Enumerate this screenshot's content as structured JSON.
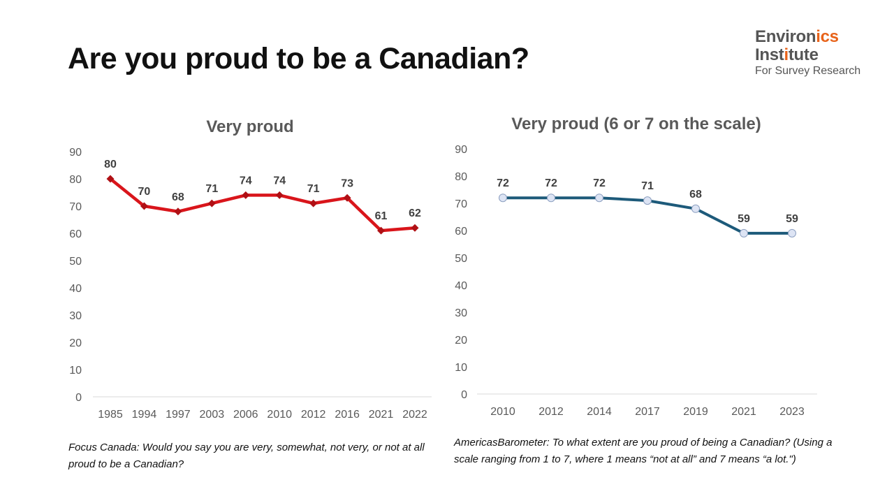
{
  "page": {
    "title": "Are you proud to be a Canadian?"
  },
  "logo": {
    "line1_main": "Environ",
    "line1_accent": "ics",
    "line2_main": "Inst",
    "line2_accent": "i",
    "line2_rest": "tute",
    "subtitle": "For Survey Research"
  },
  "colors": {
    "left_series": "#d9151b",
    "left_marker": "#b01015",
    "right_series": "#1d5a7a",
    "right_marker_fill": "#dde4f4",
    "right_marker_stroke": "#8c9fc0",
    "axis_text": "#595959",
    "label_text": "#404040",
    "logo_accent": "#e8631a"
  },
  "chart_data": [
    {
      "type": "line",
      "title": "Very proud",
      "categories": [
        "1985",
        "1994",
        "1997",
        "2003",
        "2006",
        "2010",
        "2012",
        "2016",
        "2021",
        "2022"
      ],
      "values": [
        80,
        70,
        68,
        71,
        74,
        74,
        71,
        73,
        61,
        62
      ],
      "ylim": [
        0,
        90
      ],
      "yticks": [
        0,
        10,
        20,
        30,
        40,
        50,
        60,
        70,
        80,
        90
      ],
      "marker": "diamond",
      "grid": false,
      "data_labels": true
    },
    {
      "type": "line",
      "title": "Very proud (6 or 7 on the scale)",
      "categories": [
        "2010",
        "2012",
        "2014",
        "2017",
        "2019",
        "2021",
        "2023"
      ],
      "values": [
        72,
        72,
        72,
        71,
        68,
        59,
        59
      ],
      "ylim": [
        0,
        90
      ],
      "yticks": [
        0,
        10,
        20,
        30,
        40,
        50,
        60,
        70,
        80,
        90
      ],
      "marker": "circle",
      "grid": false,
      "data_labels": true
    }
  ],
  "notes": {
    "left": "Focus Canada: Would you say you are very, somewhat, not very, or not at all proud to be a Canadian?",
    "right": "AmericasBarometer: To what extent are you proud of being a Canadian? (Using a scale ranging from 1 to 7, where 1 means “not at all” and 7 means “a lot.\")"
  }
}
